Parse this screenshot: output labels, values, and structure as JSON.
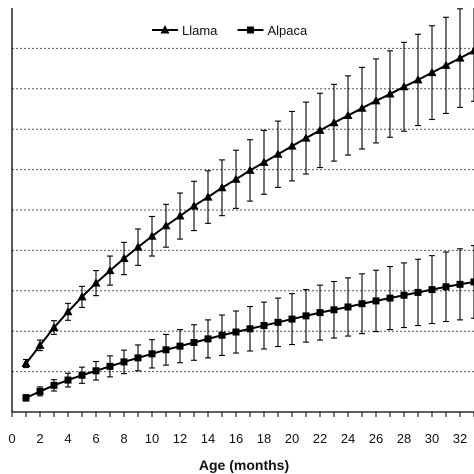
{
  "chart_data": {
    "type": "line",
    "title": "",
    "xlabel": "Age (months)",
    "ylabel": "",
    "xlim": [
      0,
      33
    ],
    "ylim": [
      0,
      100
    ],
    "x_ticks": [
      0,
      2,
      4,
      6,
      8,
      10,
      12,
      14,
      16,
      18,
      20,
      22,
      24,
      26,
      28,
      30,
      32
    ],
    "y_gridlines": [
      10,
      20,
      30,
      40,
      50,
      60,
      70,
      80,
      90
    ],
    "grid": "horizontal-dashed",
    "legend_position": "top-center",
    "x": [
      1,
      2,
      3,
      4,
      5,
      6,
      7,
      8,
      9,
      10,
      11,
      12,
      13,
      14,
      15,
      16,
      17,
      18,
      19,
      20,
      21,
      22,
      23,
      24,
      25,
      26,
      27,
      28,
      29,
      30,
      31,
      32,
      33
    ],
    "series": [
      {
        "name": "Llama",
        "marker": "triangle",
        "values": [
          12.0,
          16.5,
          20.9,
          24.8,
          28.5,
          31.9,
          35.0,
          38.0,
          40.8,
          43.5,
          46.1,
          48.5,
          51.0,
          53.2,
          55.5,
          57.6,
          59.8,
          61.8,
          63.8,
          65.8,
          67.8,
          69.7,
          71.6,
          73.4,
          75.2,
          77.0,
          78.7,
          80.5,
          82.2,
          84.0,
          85.8,
          87.6,
          89.4
        ],
        "errors": [
          1.0,
          1.3,
          1.7,
          2.1,
          2.6,
          3.1,
          3.6,
          4.0,
          4.5,
          4.9,
          5.3,
          5.7,
          6.1,
          6.5,
          6.9,
          7.2,
          7.6,
          7.9,
          8.2,
          8.6,
          8.9,
          9.2,
          9.5,
          9.8,
          10.1,
          10.4,
          10.7,
          11.0,
          11.3,
          11.6,
          11.9,
          12.2,
          12.5
        ]
      },
      {
        "name": "Alpaca",
        "marker": "square",
        "values": [
          3.5,
          5.1,
          6.6,
          7.9,
          9.1,
          10.2,
          11.3,
          12.4,
          13.4,
          14.4,
          15.4,
          16.3,
          17.2,
          18.1,
          19.0,
          19.8,
          20.6,
          21.4,
          22.2,
          23.0,
          23.8,
          24.6,
          25.3,
          26.0,
          26.8,
          27.5,
          28.2,
          28.9,
          29.6,
          30.3,
          31.0,
          31.6,
          32.2
        ],
        "errors": [
          0.8,
          1.1,
          1.4,
          1.7,
          2.0,
          2.3,
          2.6,
          2.9,
          3.2,
          3.5,
          3.8,
          4.1,
          4.4,
          4.7,
          5.0,
          5.2,
          5.5,
          5.8,
          6.0,
          6.3,
          6.5,
          6.8,
          7.0,
          7.2,
          7.4,
          7.6,
          7.8,
          8.0,
          8.2,
          8.4,
          8.6,
          8.8,
          9.0
        ]
      }
    ],
    "colors": {
      "line": "#000000",
      "grid": "#555555"
    }
  }
}
